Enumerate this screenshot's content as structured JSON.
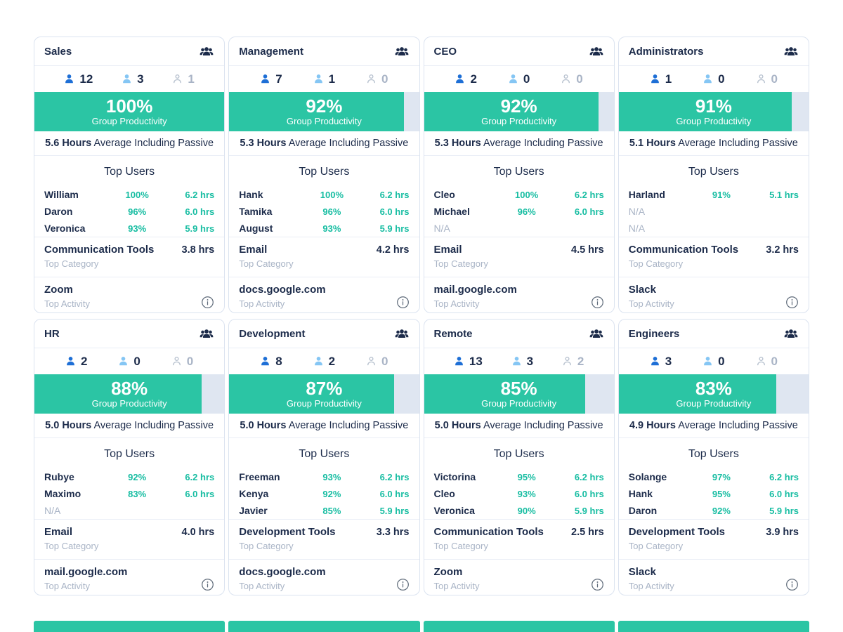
{
  "ui": {
    "group_productivity": "Group Productivity",
    "avg_suffix": " Average Including Passive",
    "top_users": "Top Users",
    "top_category": "Top Category",
    "top_activity": "Top Activity"
  },
  "colors": {
    "accent_teal": "#2bc5a4",
    "teal_text": "#17bda2",
    "navy_text": "#1c2b4a",
    "active_blue": "#1e6fd6",
    "idle_light_blue": "#85c6f4",
    "offline_gray": "#b9c3d0",
    "muted_gray": "#a9b4c6",
    "bar_track": "#dfe6f1",
    "card_border": "#dbe3f0"
  },
  "cards": [
    {
      "title": "Sales",
      "counts": {
        "active": "12",
        "idle": "3",
        "offline": "1"
      },
      "productivity_pct": "100%",
      "productivity_value": 100,
      "avg_hours": "5.6 Hours",
      "top_users": [
        {
          "name": "William",
          "pct": "100%",
          "hrs": "6.2 hrs"
        },
        {
          "name": "Daron",
          "pct": "96%",
          "hrs": "6.0 hrs"
        },
        {
          "name": "Veronica",
          "pct": "93%",
          "hrs": "5.9 hrs"
        }
      ],
      "top_category": {
        "name": "Communication Tools",
        "hrs": "3.8 hrs"
      },
      "top_activity": "Zoom"
    },
    {
      "title": "Management",
      "counts": {
        "active": "7",
        "idle": "1",
        "offline": "0"
      },
      "productivity_pct": "92%",
      "productivity_value": 92,
      "avg_hours": "5.3 Hours",
      "top_users": [
        {
          "name": "Hank",
          "pct": "100%",
          "hrs": "6.2 hrs"
        },
        {
          "name": "Tamika",
          "pct": "96%",
          "hrs": "6.0 hrs"
        },
        {
          "name": "August",
          "pct": "93%",
          "hrs": "5.9 hrs"
        }
      ],
      "top_category": {
        "name": "Email",
        "hrs": "4.2 hrs"
      },
      "top_activity": "docs.google.com"
    },
    {
      "title": "CEO",
      "counts": {
        "active": "2",
        "idle": "0",
        "offline": "0"
      },
      "productivity_pct": "92%",
      "productivity_value": 92,
      "avg_hours": "5.3 Hours",
      "top_users": [
        {
          "name": "Cleo",
          "pct": "100%",
          "hrs": "6.2 hrs"
        },
        {
          "name": "Michael",
          "pct": "96%",
          "hrs": "6.0 hrs"
        },
        {
          "name": "N/A",
          "pct": "",
          "hrs": ""
        }
      ],
      "top_category": {
        "name": "Email",
        "hrs": "4.5 hrs"
      },
      "top_activity": "mail.google.com"
    },
    {
      "title": "Administrators",
      "counts": {
        "active": "1",
        "idle": "0",
        "offline": "0"
      },
      "productivity_pct": "91%",
      "productivity_value": 91,
      "avg_hours": "5.1 Hours",
      "top_users": [
        {
          "name": "Harland",
          "pct": "91%",
          "hrs": "5.1 hrs"
        },
        {
          "name": "N/A",
          "pct": "",
          "hrs": ""
        },
        {
          "name": "N/A",
          "pct": "",
          "hrs": ""
        }
      ],
      "top_category": {
        "name": "Communication Tools",
        "hrs": "3.2 hrs"
      },
      "top_activity": "Slack"
    },
    {
      "title": "HR",
      "counts": {
        "active": "2",
        "idle": "0",
        "offline": "0"
      },
      "productivity_pct": "88%",
      "productivity_value": 88,
      "avg_hours": "5.0 Hours",
      "top_users": [
        {
          "name": "Rubye",
          "pct": "92%",
          "hrs": "6.2 hrs"
        },
        {
          "name": "Maximo",
          "pct": "83%",
          "hrs": "6.0 hrs"
        },
        {
          "name": "N/A",
          "pct": "",
          "hrs": ""
        }
      ],
      "top_category": {
        "name": "Email",
        "hrs": "4.0 hrs"
      },
      "top_activity": "mail.google.com"
    },
    {
      "title": "Development",
      "counts": {
        "active": "8",
        "idle": "2",
        "offline": "0"
      },
      "productivity_pct": "87%",
      "productivity_value": 87,
      "avg_hours": "5.0 Hours",
      "top_users": [
        {
          "name": "Freeman",
          "pct": "93%",
          "hrs": "6.2 hrs"
        },
        {
          "name": "Kenya",
          "pct": "92%",
          "hrs": "6.0 hrs"
        },
        {
          "name": "Javier",
          "pct": "85%",
          "hrs": "5.9 hrs"
        }
      ],
      "top_category": {
        "name": "Development Tools",
        "hrs": "3.3 hrs"
      },
      "top_activity": "docs.google.com"
    },
    {
      "title": "Remote",
      "counts": {
        "active": "13",
        "idle": "3",
        "offline": "2"
      },
      "productivity_pct": "85%",
      "productivity_value": 85,
      "avg_hours": "5.0 Hours",
      "top_users": [
        {
          "name": "Victorina",
          "pct": "95%",
          "hrs": "6.2 hrs"
        },
        {
          "name": "Cleo",
          "pct": "93%",
          "hrs": "6.0 hrs"
        },
        {
          "name": "Veronica",
          "pct": "90%",
          "hrs": "5.9 hrs"
        }
      ],
      "top_category": {
        "name": "Communication Tools",
        "hrs": "2.5 hrs"
      },
      "top_activity": "Zoom"
    },
    {
      "title": "Engineers",
      "counts": {
        "active": "3",
        "idle": "0",
        "offline": "0"
      },
      "productivity_pct": "83%",
      "productivity_value": 83,
      "avg_hours": "4.9 Hours",
      "top_users": [
        {
          "name": "Solange",
          "pct": "97%",
          "hrs": "6.2 hrs"
        },
        {
          "name": "Hank",
          "pct": "95%",
          "hrs": "6.0 hrs"
        },
        {
          "name": "Daron",
          "pct": "92%",
          "hrs": "5.9 hrs"
        }
      ],
      "top_category": {
        "name": "Development Tools",
        "hrs": "3.9 hrs"
      },
      "top_activity": "Slack"
    }
  ]
}
